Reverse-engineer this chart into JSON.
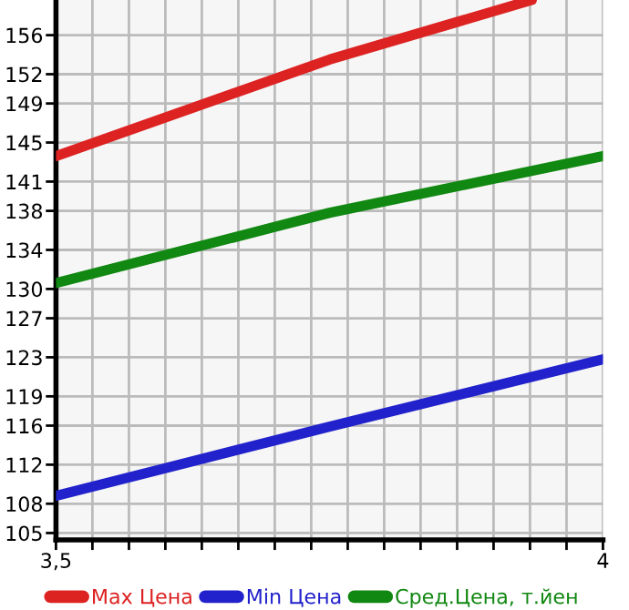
{
  "chart_data": {
    "type": "line",
    "series": [
      {
        "name": "Max Цена",
        "color": "#dd2222",
        "x": [
          3.5,
          3.75,
          3.935
        ],
        "values": [
          143.6,
          153.5,
          159.6
        ]
      },
      {
        "name": "Min Цена",
        "color": "#2222cc",
        "x": [
          3.5,
          3.75,
          4
        ],
        "values": [
          108.8,
          115.9,
          122.8
        ]
      },
      {
        "name": "Сред.Цена, т.йен",
        "color": "#118811",
        "x": [
          3.5,
          3.75,
          4
        ],
        "values": [
          130.6,
          137.8,
          143.6
        ]
      }
    ],
    "xlim": [
      3.5,
      4
    ],
    "xticks": [
      {
        "value": 3.5,
        "label": "3,5"
      },
      {
        "value": 3.5333,
        "label": null
      },
      {
        "value": 3.5667,
        "label": null
      },
      {
        "value": 3.6,
        "label": null
      },
      {
        "value": 3.6333,
        "label": null
      },
      {
        "value": 3.6667,
        "label": null
      },
      {
        "value": 3.7,
        "label": null
      },
      {
        "value": 3.7333,
        "label": null
      },
      {
        "value": 3.7667,
        "label": null
      },
      {
        "value": 3.8,
        "label": null
      },
      {
        "value": 3.8333,
        "label": null
      },
      {
        "value": 3.8667,
        "label": null
      },
      {
        "value": 3.9,
        "label": null
      },
      {
        "value": 3.9333,
        "label": null
      },
      {
        "value": 3.9667,
        "label": null
      },
      4
    ],
    "ylim": [
      104.3,
      159.6
    ],
    "yticks": [
      105,
      108,
      112,
      116,
      119,
      123,
      127,
      130,
      134,
      138,
      141,
      145,
      149,
      152,
      156
    ],
    "grid": true,
    "legend": "bottom",
    "marker": "none",
    "line_style": "solid"
  }
}
